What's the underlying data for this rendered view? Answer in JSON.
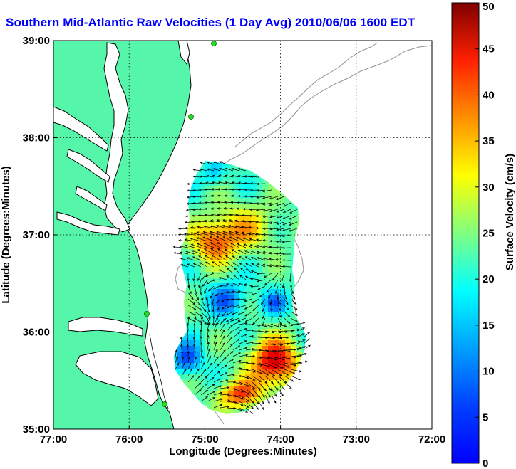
{
  "title": "Southern Mid-Atlantic Raw Velocities (1 Day Avg) 2010/06/06 1600 EDT",
  "map": {
    "xlabel": "Longitude (Degrees:Minutes)",
    "ylabel": "Latitude (Degrees:Minutes)",
    "x_ticks": [
      "77:00",
      "76:00",
      "75:00",
      "74:00",
      "73:00",
      "72:00"
    ],
    "y_ticks": [
      "39:00",
      "38:00",
      "37:00",
      "36:00",
      "35:00"
    ],
    "lon_range": [
      -77,
      -72
    ],
    "lat_range": [
      35,
      39
    ],
    "land_color": "#55f5aa",
    "water_color": "#ffffff",
    "grid": "dotted",
    "station_color": "#22dd22"
  },
  "colorbar": {
    "label": "Surface Velocity (cm/s)",
    "ticks": [
      "0",
      "5",
      "10",
      "15",
      "20",
      "25",
      "30",
      "35",
      "40",
      "45",
      "50"
    ],
    "range": [
      0,
      50
    ],
    "colormap": "jet"
  }
}
